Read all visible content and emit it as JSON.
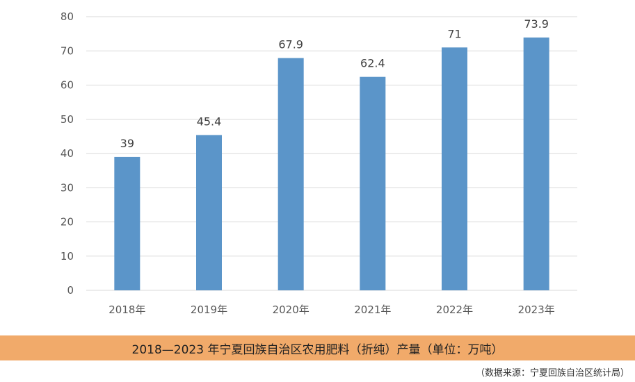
{
  "chart_data": {
    "type": "bar",
    "title": "2018—2023 年宁夏回族自治区农用肥料（折纯）产量（单位：万吨）",
    "categories": [
      "2018年",
      "2019年",
      "2020年",
      "2021年",
      "2022年",
      "2023年"
    ],
    "values": [
      39,
      45.4,
      67.9,
      62.4,
      71,
      73.9
    ],
    "data_labels": [
      "39",
      "45.4",
      "67.9",
      "62.4",
      "71",
      "73.9"
    ],
    "ylim": [
      0,
      80
    ],
    "yticks": [
      0,
      10,
      20,
      30,
      40,
      50,
      60,
      70,
      80
    ],
    "xlabel": "",
    "ylabel": "",
    "grid": true,
    "bar_color": "#5b95c9",
    "source": "（数据来源：宁夏回族自治区统计局）"
  },
  "colors": {
    "caption_bg": "#f1aa6a",
    "grid": "#d9d9d9"
  }
}
